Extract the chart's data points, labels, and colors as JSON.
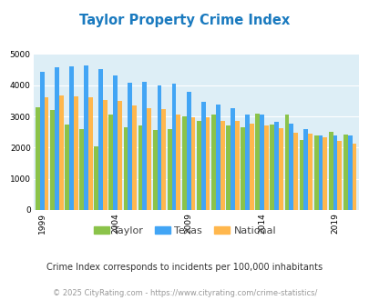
{
  "title": "Taylor Property Crime Index",
  "years": [
    1999,
    2000,
    2001,
    2002,
    2003,
    2004,
    2005,
    2006,
    2007,
    2008,
    2009,
    2010,
    2011,
    2012,
    2013,
    2014,
    2015,
    2016,
    2017,
    2018,
    2019,
    2020
  ],
  "taylor": [
    3300,
    3200,
    2750,
    2600,
    2050,
    3050,
    2650,
    2700,
    2550,
    2600,
    3000,
    2850,
    3050,
    2700,
    2650,
    3100,
    2750,
    3050,
    2250,
    2380,
    2500,
    2420
  ],
  "texas": [
    4420,
    4580,
    4600,
    4620,
    4520,
    4300,
    4080,
    4100,
    4000,
    4050,
    3800,
    3480,
    3380,
    3270,
    3050,
    3050,
    2830,
    2780,
    2600,
    2380,
    2400,
    2380
  ],
  "national": [
    3600,
    3680,
    3650,
    3600,
    3520,
    3490,
    3340,
    3260,
    3220,
    3050,
    2980,
    2980,
    2870,
    2860,
    2770,
    2720,
    2620,
    2490,
    2460,
    2330,
    2200,
    2140
  ],
  "taylor_color": "#8bc34a",
  "texas_color": "#42a5f5",
  "national_color": "#ffb74d",
  "bg_color": "#ddeef6",
  "ylim": [
    0,
    5000
  ],
  "yticks": [
    0,
    1000,
    2000,
    3000,
    4000,
    5000
  ],
  "xlabel_ticks": [
    1999,
    2004,
    2009,
    2014,
    2019
  ],
  "footnote1": "Crime Index corresponds to incidents per 100,000 inhabitants",
  "footnote2": "© 2025 CityRating.com - https://www.cityrating.com/crime-statistics/",
  "legend_labels": [
    "Taylor",
    "Texas",
    "National"
  ]
}
